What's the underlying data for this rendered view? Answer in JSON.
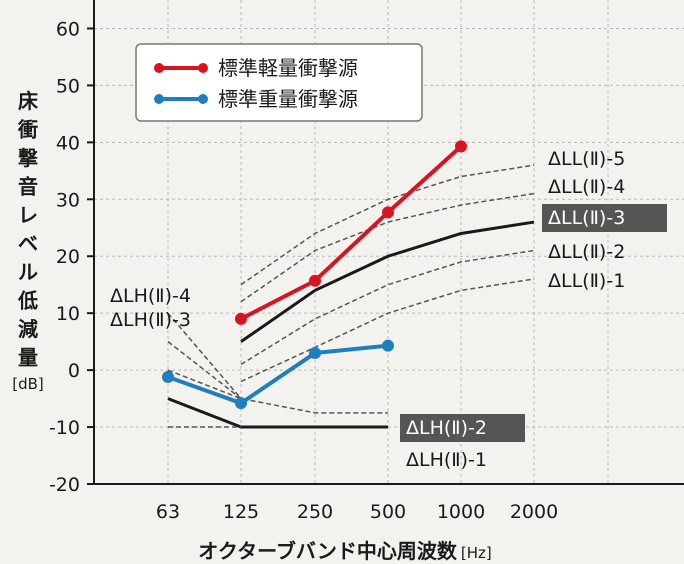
{
  "chart_data": {
    "type": "line",
    "xlabel": "オクターブバンド中心周波数",
    "xunit": "[Hz]",
    "ylabel": "床衝撃音レベル低減量",
    "yunit": "[dB]",
    "ylim": [
      -20,
      65
    ],
    "yticks": [
      60,
      50,
      40,
      30,
      20,
      10,
      0,
      -10,
      -20
    ],
    "categories": [
      "63",
      "125",
      "250",
      "500",
      "1000",
      "2000"
    ],
    "grid": true,
    "legend_position": "top-left",
    "series": [
      {
        "name": "標準軽量衝撃源",
        "color": "#d7141f",
        "values": [
          null,
          9,
          15.7,
          27.7,
          39.3,
          null
        ]
      },
      {
        "name": "標準重量衝撃源",
        "color": "#1f7ec0",
        "values": [
          -1.2,
          -5.8,
          3,
          4.3,
          null,
          null
        ]
      }
    ],
    "reference_lines": [
      {
        "label": "ΔLL(Ⅱ)-5",
        "style": "dashed",
        "highlight": false,
        "values": [
          null,
          15,
          24,
          30,
          34,
          36
        ]
      },
      {
        "label": "ΔLL(Ⅱ)-4",
        "style": "dashed",
        "highlight": false,
        "values": [
          null,
          12,
          21,
          26,
          29,
          31
        ]
      },
      {
        "label": "ΔLL(Ⅱ)-3",
        "style": "solid",
        "highlight": true,
        "values": [
          null,
          5,
          14,
          20,
          24,
          26
        ]
      },
      {
        "label": "ΔLL(Ⅱ)-2",
        "style": "dashed",
        "highlight": false,
        "values": [
          null,
          1,
          9,
          15,
          19,
          21
        ]
      },
      {
        "label": "ΔLL(Ⅱ)-1",
        "style": "dashed",
        "highlight": false,
        "values": [
          null,
          -2,
          4,
          10,
          14,
          16
        ]
      },
      {
        "label": "ΔLH(Ⅱ)-4",
        "style": "dashed",
        "highlight": false,
        "values": [
          10,
          -5,
          null,
          null,
          null,
          null
        ]
      },
      {
        "label": "ΔLH(Ⅱ)-3",
        "style": "dashed",
        "highlight": false,
        "values": [
          5,
          -5,
          null,
          null,
          null,
          null
        ]
      },
      {
        "label": "ΔLH(Ⅱ)-2",
        "style": "dashed",
        "highlight": true,
        "values": [
          0,
          -5,
          -7.5,
          -7.5,
          null,
          null
        ]
      },
      {
        "label": "ΔLH(Ⅱ)-1",
        "style": "solid",
        "highlight": false,
        "values": [
          -5,
          -10,
          -10,
          -10,
          null,
          null
        ]
      },
      {
        "label": "",
        "style": "dashed",
        "highlight": false,
        "values": [
          -10,
          -10,
          null,
          null,
          null,
          null
        ]
      }
    ]
  }
}
